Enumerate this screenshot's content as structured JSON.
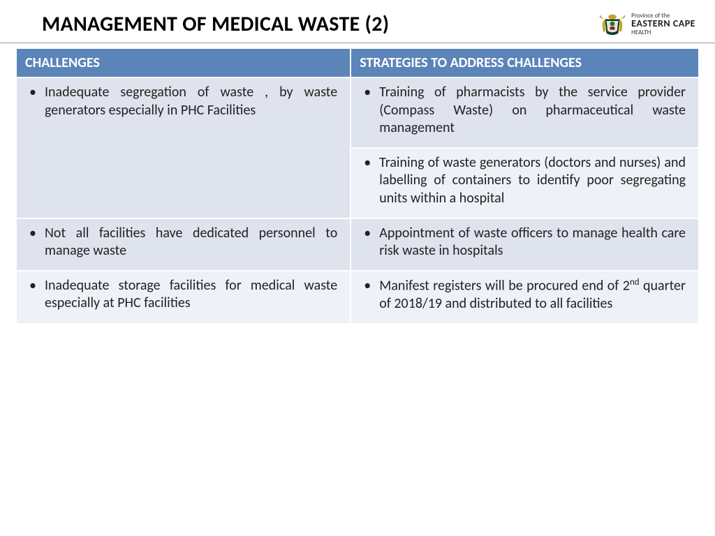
{
  "title": "MANAGEMENT OF MEDICAL WASTE (2)",
  "logo": {
    "line1": "Province of the",
    "line2": "EASTERN CAPE",
    "line3": "HEALTH"
  },
  "table": {
    "header_bg": "#5b84b9",
    "header_fg": "#ffffff",
    "shade_a": "#dfe3ed",
    "shade_b": "#eef1f7",
    "font_size": 20,
    "columns": [
      "CHALLENGES",
      "STRATEGIES TO ADDRESS CHALLENGES"
    ],
    "col_widths": [
      "49%",
      "51%"
    ],
    "rows": [
      {
        "left": {
          "text": "Inadequate segregation of waste , by waste generators especially in PHC Facilities",
          "rowspan": 2,
          "shade": "a"
        },
        "right": {
          "text": "Training of pharmacists by the service provider (Compass Waste) on pharmaceutical waste management",
          "shade": "a"
        }
      },
      {
        "right": {
          "text": "Training of waste generators (doctors and nurses) and labelling of containers to identify poor segregating units within a hospital",
          "shade": "b"
        }
      },
      {
        "left": {
          "text": "Not all facilities have dedicated personnel to manage waste",
          "shade": "a"
        },
        "right": {
          "text": "Appointment of waste officers to manage health care risk waste in hospitals",
          "shade": "a"
        }
      },
      {
        "left": {
          "text": "Inadequate storage facilities for medical waste especially at PHC facilities",
          "shade": "b"
        },
        "right": {
          "html": "Manifest registers will be procured end of 2<sup>nd</sup> quarter of 2018/19 and distributed to all facilities",
          "shade": "b"
        }
      }
    ]
  }
}
